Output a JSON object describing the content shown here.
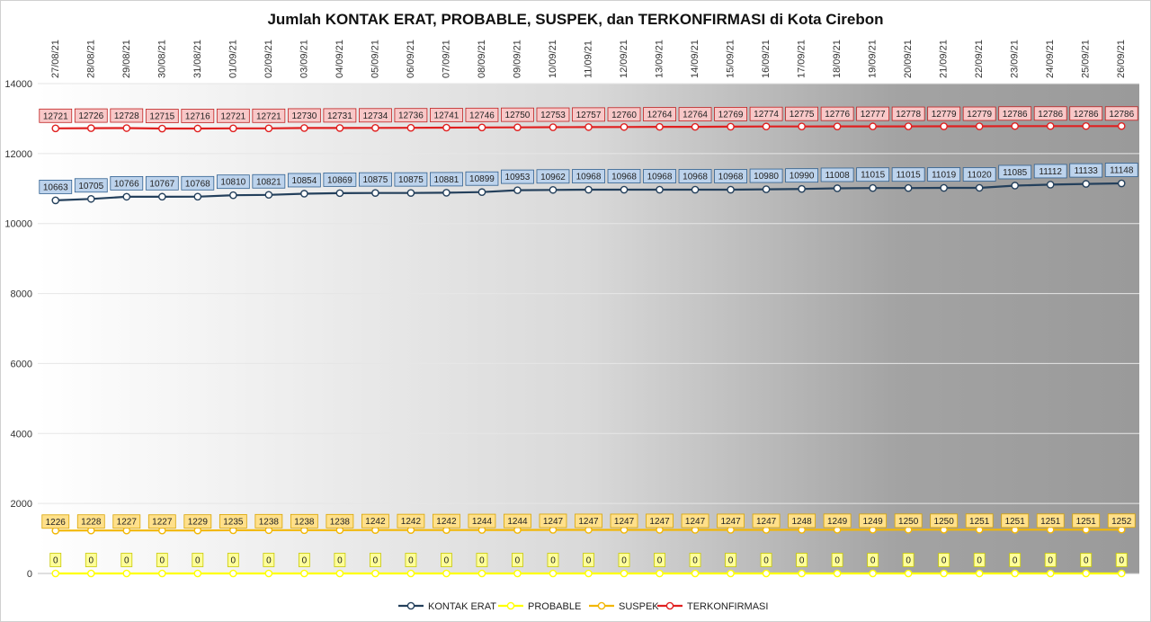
{
  "chart_data": {
    "type": "line",
    "title": "Jumlah KONTAK ERAT, PROBABLE, SUSPEK, dan TERKONFIRMASI di Kota Cirebon",
    "xlabel": "",
    "ylabel": "",
    "ylim": [
      0,
      14000
    ],
    "yticks": [
      0,
      2000,
      4000,
      6000,
      8000,
      10000,
      12000,
      14000
    ],
    "grid": true,
    "legend_position": "bottom",
    "categories": [
      "27/08/21",
      "28/08/21",
      "29/08/21",
      "30/08/21",
      "31/08/21",
      "01/09/21",
      "02/09/21",
      "03/09/21",
      "04/09/21",
      "05/09/21",
      "06/09/21",
      "07/09/21",
      "08/09/21",
      "09/09/21",
      "10/09/21",
      "11/09/21",
      "12/09/21",
      "13/09/21",
      "14/09/21",
      "15/09/21",
      "16/09/21",
      "17/09/21",
      "18/09/21",
      "19/09/21",
      "20/09/21",
      "21/09/21",
      "22/09/21",
      "23/09/21",
      "24/09/21",
      "25/09/21",
      "26/09/21"
    ],
    "series": [
      {
        "name": "KONTAK ERAT",
        "color": "#24405c",
        "label_fill": "#bdd3ec",
        "label_stroke": "#2f5f8f",
        "values": [
          10663,
          10705,
          10766,
          10767,
          10768,
          10810,
          10821,
          10854,
          10869,
          10875,
          10875,
          10881,
          10899,
          10953,
          10962,
          10968,
          10968,
          10968,
          10968,
          10968,
          10980,
          10990,
          11008,
          11015,
          11015,
          11019,
          11020,
          11085,
          11112,
          11133,
          11148
        ]
      },
      {
        "name": "PROBABLE",
        "color": "#ffff00",
        "label_fill": "#ffff99",
        "label_stroke": "#c8c800",
        "values": [
          0,
          0,
          0,
          0,
          0,
          0,
          0,
          0,
          0,
          0,
          0,
          0,
          0,
          0,
          0,
          0,
          0,
          0,
          0,
          0,
          0,
          0,
          0,
          0,
          0,
          0,
          0,
          0,
          0,
          0,
          0
        ]
      },
      {
        "name": "SUSPEK",
        "color": "#f2b705",
        "label_fill": "#ffe08a",
        "label_stroke": "#d9a400",
        "values": [
          1226,
          1228,
          1227,
          1227,
          1229,
          1235,
          1238,
          1238,
          1238,
          1242,
          1242,
          1242,
          1244,
          1244,
          1247,
          1247,
          1247,
          1247,
          1247,
          1247,
          1247,
          1248,
          1249,
          1249,
          1250,
          1250,
          1251,
          1251,
          1251,
          1251,
          1252
        ]
      },
      {
        "name": "TERKONFIRMASI",
        "color": "#e02020",
        "label_fill": "#f8c8c8",
        "label_stroke": "#c02020",
        "values": [
          12721,
          12726,
          12728,
          12715,
          12716,
          12721,
          12721,
          12730,
          12731,
          12734,
          12736,
          12741,
          12746,
          12750,
          12753,
          12757,
          12760,
          12764,
          12764,
          12769,
          12774,
          12775,
          12776,
          12777,
          12778,
          12779,
          12779,
          12786,
          12786,
          12786,
          12786
        ]
      }
    ]
  }
}
